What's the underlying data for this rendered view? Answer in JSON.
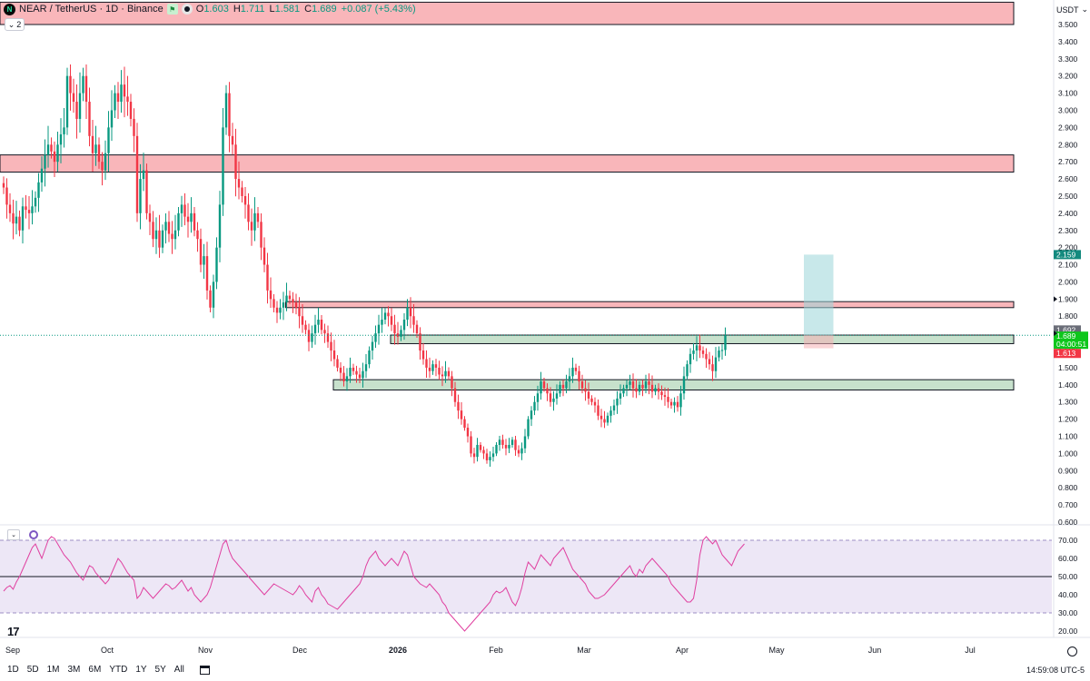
{
  "header": {
    "symbol_badge": "N",
    "title": "NEAR / TetherUS · 1D · Binance",
    "open_label": "O",
    "open": "1.603",
    "high_label": "H",
    "high": "1.711",
    "low_label": "L",
    "low": "1.581",
    "close_label": "C",
    "close": "1.689",
    "change": "+0.087 (+5.43%)",
    "collapse_count": "2"
  },
  "currency": "USDT",
  "periods": [
    "1D",
    "5D",
    "1M",
    "3M",
    "6M",
    "YTD",
    "1Y",
    "5Y",
    "All"
  ],
  "clock": "14:59:08 UTC-5",
  "colors": {
    "up": "#089981",
    "down": "#f23645",
    "resistance": "#f7a4a9",
    "support": "#b9d9bf",
    "rsi_line": "#e040a0",
    "rsi_band": "#ede7f6"
  },
  "chart_data": [
    {
      "type": "candlestick",
      "title": "NEAR / TetherUS · 1D · Binance",
      "y_unit": "USDT",
      "ylim": [
        0.6,
        3.57
      ],
      "yticks": [
        "3.500",
        "3.400",
        "3.300",
        "3.200",
        "3.100",
        "3.000",
        "2.900",
        "2.800",
        "2.700",
        "2.600",
        "2.500",
        "2.400",
        "2.300",
        "2.200",
        "2.100",
        "2.000",
        "1.900",
        "1.800",
        "1.700",
        "1.600",
        "1.500",
        "1.400",
        "1.300",
        "1.200",
        "1.100",
        "1.000",
        "0.900",
        "0.800",
        "0.700",
        "0.600"
      ],
      "xticks": [
        "Sep",
        "Oct",
        "Nov",
        "Dec",
        "2026",
        "Feb",
        "Mar",
        "Apr",
        "May",
        "Jun",
        "Jul"
      ],
      "price_labels": {
        "target": "2.159",
        "reference": "1.692",
        "last": "1.689",
        "countdown": "04:00:51",
        "stop": "1.613"
      },
      "zones": [
        {
          "kind": "resistance",
          "from_day": 0,
          "to_day": 318,
          "low": 3.5,
          "high": 3.63
        },
        {
          "kind": "resistance",
          "from_day": 0,
          "to_day": 318,
          "low": 2.64,
          "high": 2.74
        },
        {
          "kind": "resistance",
          "from_day": 89,
          "to_day": 318,
          "low": 1.85,
          "high": 1.885
        },
        {
          "kind": "support",
          "from_day": 122,
          "to_day": 318,
          "low": 1.64,
          "high": 1.69
        },
        {
          "kind": "support",
          "from_day": 104,
          "to_day": 318,
          "low": 1.37,
          "high": 1.43
        }
      ],
      "position": {
        "from_day": 252,
        "to_day": 259,
        "entry": 1.689,
        "target": 2.159,
        "stop": 1.613
      },
      "closes": [
        2.55,
        2.45,
        2.4,
        2.34,
        2.38,
        2.3,
        2.44,
        2.42,
        2.4,
        2.44,
        2.49,
        2.58,
        2.66,
        2.74,
        2.8,
        2.76,
        2.7,
        2.8,
        2.86,
        2.9,
        3.2,
        3.1,
        3.05,
        2.95,
        3.1,
        3.2,
        3.05,
        2.85,
        2.75,
        2.8,
        2.7,
        2.65,
        2.75,
        2.9,
        3.0,
        3.1,
        3.05,
        3.15,
        3.08,
        3.05,
        2.95,
        2.85,
        2.4,
        2.6,
        2.65,
        2.4,
        2.35,
        2.25,
        2.3,
        2.2,
        2.3,
        2.35,
        2.28,
        2.25,
        2.3,
        2.4,
        2.45,
        2.38,
        2.35,
        2.4,
        2.3,
        2.25,
        2.1,
        2.15,
        1.95,
        1.85,
        2.0,
        2.2,
        2.45,
        2.9,
        3.1,
        2.85,
        2.8,
        2.6,
        2.55,
        2.5,
        2.45,
        2.35,
        2.3,
        2.4,
        2.35,
        2.2,
        2.1,
        1.95,
        1.9,
        1.85,
        1.82,
        1.85,
        1.88,
        1.92,
        1.9,
        1.88,
        1.85,
        1.8,
        1.75,
        1.72,
        1.65,
        1.7,
        1.75,
        1.78,
        1.72,
        1.7,
        1.65,
        1.6,
        1.55,
        1.5,
        1.47,
        1.42,
        1.45,
        1.5,
        1.48,
        1.46,
        1.44,
        1.48,
        1.52,
        1.6,
        1.65,
        1.7,
        1.75,
        1.78,
        1.82,
        1.8,
        1.75,
        1.7,
        1.68,
        1.72,
        1.78,
        1.85,
        1.8,
        1.75,
        1.7,
        1.6,
        1.55,
        1.5,
        1.48,
        1.52,
        1.5,
        1.46,
        1.45,
        1.48,
        1.45,
        1.38,
        1.3,
        1.25,
        1.2,
        1.15,
        1.1,
        1.0,
        0.98,
        1.05,
        1.02,
        1.0,
        0.96,
        0.98,
        1.0,
        1.05,
        1.08,
        1.05,
        1.03,
        1.05,
        1.08,
        1.02,
        1.0,
        1.03,
        1.1,
        1.2,
        1.25,
        1.3,
        1.35,
        1.42,
        1.38,
        1.35,
        1.3,
        1.32,
        1.35,
        1.4,
        1.38,
        1.42,
        1.45,
        1.5,
        1.48,
        1.42,
        1.38,
        1.36,
        1.32,
        1.3,
        1.28,
        1.22,
        1.2,
        1.18,
        1.22,
        1.25,
        1.28,
        1.32,
        1.35,
        1.38,
        1.4,
        1.42,
        1.38,
        1.36,
        1.4,
        1.38,
        1.42,
        1.4,
        1.36,
        1.38,
        1.36,
        1.34,
        1.33,
        1.3,
        1.28,
        1.3,
        1.27,
        1.35,
        1.45,
        1.52,
        1.58,
        1.6,
        1.63,
        1.6,
        1.58,
        1.55,
        1.52,
        1.48,
        1.56,
        1.6,
        1.603,
        1.689
      ],
      "start_day": 0,
      "days_per_month_tick": 30
    },
    {
      "type": "line",
      "title": "RSI",
      "ylim": [
        17,
        73
      ],
      "yticks": [
        "70.00",
        "60.00",
        "50.00",
        "40.00",
        "30.00",
        "20.00"
      ],
      "levels": [
        70,
        50,
        30
      ],
      "values": [
        42,
        44,
        45,
        43,
        47,
        50,
        54,
        58,
        62,
        66,
        68,
        64,
        60,
        65,
        70,
        72,
        71,
        68,
        65,
        62,
        60,
        58,
        55,
        52,
        50,
        48,
        52,
        56,
        55,
        52,
        50,
        48,
        46,
        48,
        52,
        56,
        60,
        58,
        55,
        52,
        50,
        48,
        38,
        40,
        44,
        42,
        40,
        38,
        40,
        42,
        44,
        46,
        45,
        43,
        44,
        46,
        48,
        45,
        42,
        44,
        40,
        38,
        36,
        38,
        40,
        44,
        50,
        56,
        62,
        68,
        70,
        64,
        60,
        58,
        56,
        54,
        52,
        50,
        48,
        46,
        44,
        42,
        40,
        42,
        44,
        46,
        45,
        44,
        43,
        42,
        41,
        40,
        42,
        45,
        43,
        40,
        38,
        36,
        42,
        44,
        40,
        38,
        35,
        34,
        33,
        32,
        34,
        36,
        38,
        40,
        42,
        44,
        46,
        50,
        56,
        60,
        62,
        64,
        60,
        58,
        56,
        58,
        60,
        58,
        56,
        60,
        64,
        62,
        56,
        50,
        48,
        46,
        45,
        44,
        46,
        44,
        42,
        40,
        36,
        34,
        30,
        28,
        26,
        24,
        22,
        20,
        22,
        24,
        26,
        28,
        30,
        32,
        34,
        36,
        40,
        42,
        41,
        42,
        44,
        40,
        36,
        34,
        38,
        44,
        52,
        58,
        56,
        54,
        58,
        62,
        60,
        58,
        56,
        60,
        62,
        64,
        66,
        62,
        58,
        54,
        52,
        50,
        48,
        46,
        42,
        40,
        38,
        38,
        39,
        40,
        42,
        44,
        46,
        48,
        50,
        52,
        54,
        56,
        52,
        50,
        54,
        52,
        56,
        58,
        60,
        58,
        56,
        54,
        52,
        50,
        46,
        44,
        42,
        40,
        38,
        36,
        36,
        38,
        48,
        62,
        70,
        72,
        70,
        68,
        70,
        66,
        62,
        60,
        58,
        56,
        60,
        64,
        66,
        68
      ],
      "start_day": 0
    }
  ]
}
